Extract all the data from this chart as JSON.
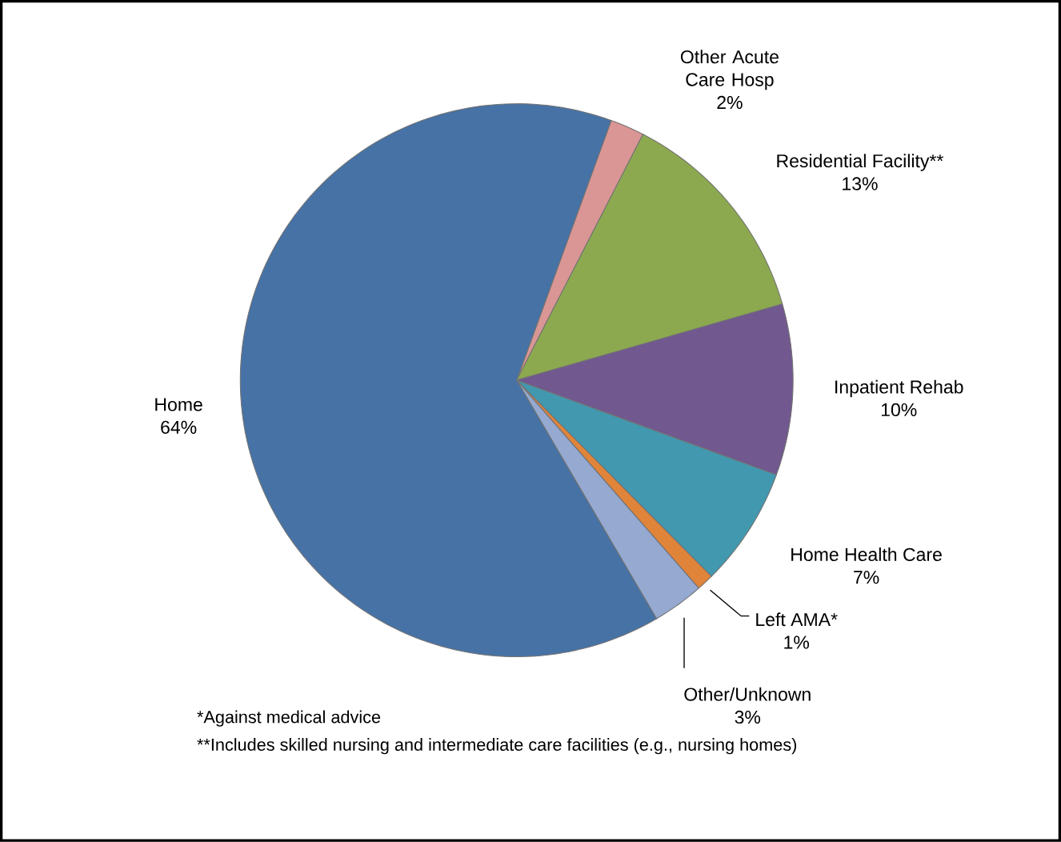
{
  "chart_data": {
    "type": "pie",
    "categories": [
      "Other Acute Care Hosp",
      "Residential Facility**",
      "Inpatient Rehab",
      "Home Health Care",
      "Left AMA*",
      "Other/Unknown",
      "Home"
    ],
    "values": [
      2,
      13,
      10,
      7,
      1,
      3,
      64
    ],
    "value_labels": [
      "2%",
      "13%",
      "10%",
      "7%",
      "1%",
      "3%",
      "64%"
    ],
    "colors": [
      "#d99694",
      "#8ca94f",
      "#71588f",
      "#4198af",
      "#e0843a",
      "#95a9d1",
      "#4672a6"
    ],
    "annotations": [
      "*Against medical advice",
      "**Includes skilled nursing and intermediate care facilities (e.g., nursing homes)"
    ]
  }
}
